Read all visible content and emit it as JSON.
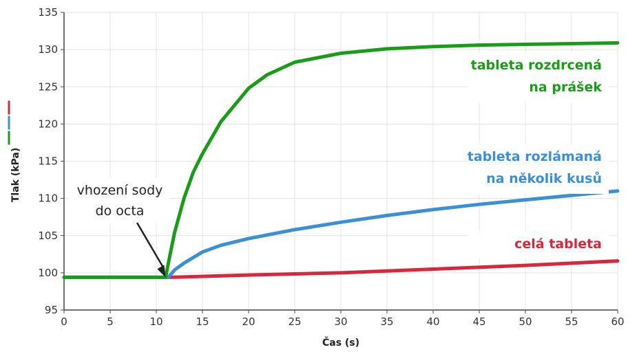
{
  "chart_data": {
    "type": "line",
    "xlabel": "Čas (s)",
    "ylabel": "Tlak (kPa)",
    "xlim": [
      0,
      60
    ],
    "ylim": [
      95,
      135
    ],
    "xticks": [
      0,
      5,
      10,
      15,
      20,
      25,
      30,
      35,
      40,
      45,
      50,
      55,
      60
    ],
    "yticks": [
      95,
      100,
      105,
      110,
      115,
      120,
      125,
      130,
      135
    ],
    "grid": true,
    "annotation": {
      "lines": [
        "vhození sody",
        "do octa"
      ],
      "point": [
        11,
        99.4
      ]
    },
    "series": [
      {
        "label_lines": [
          "tableta rozdrcená",
          "na prášek"
        ],
        "color": "#1a9c1a",
        "x": [
          0,
          11,
          11.5,
          12,
          13,
          14,
          15,
          17,
          20,
          22,
          25,
          30,
          35,
          40,
          45,
          50,
          55,
          60
        ],
        "y": [
          99.4,
          99.4,
          102.5,
          105.5,
          110.0,
          113.5,
          116.0,
          120.3,
          124.8,
          126.6,
          128.3,
          129.5,
          130.1,
          130.4,
          130.6,
          130.7,
          130.8,
          130.9
        ]
      },
      {
        "label_lines": [
          "tableta rozlámaná",
          "na několik kusů"
        ],
        "color": "#3a8fd6",
        "x": [
          0,
          11.3,
          12,
          13,
          15,
          17,
          20,
          25,
          30,
          35,
          40,
          45,
          50,
          55,
          60
        ],
        "y": [
          99.4,
          99.4,
          100.4,
          101.3,
          102.8,
          103.7,
          104.6,
          105.8,
          106.8,
          107.7,
          108.5,
          109.2,
          109.8,
          110.4,
          111.0
        ]
      },
      {
        "label_lines": [
          "celá tableta"
        ],
        "color": "#d8273a",
        "x": [
          0,
          11.5,
          20,
          30,
          40,
          50,
          60
        ],
        "y": [
          99.4,
          99.4,
          99.7,
          100.0,
          100.5,
          101.0,
          101.6
        ]
      }
    ]
  }
}
